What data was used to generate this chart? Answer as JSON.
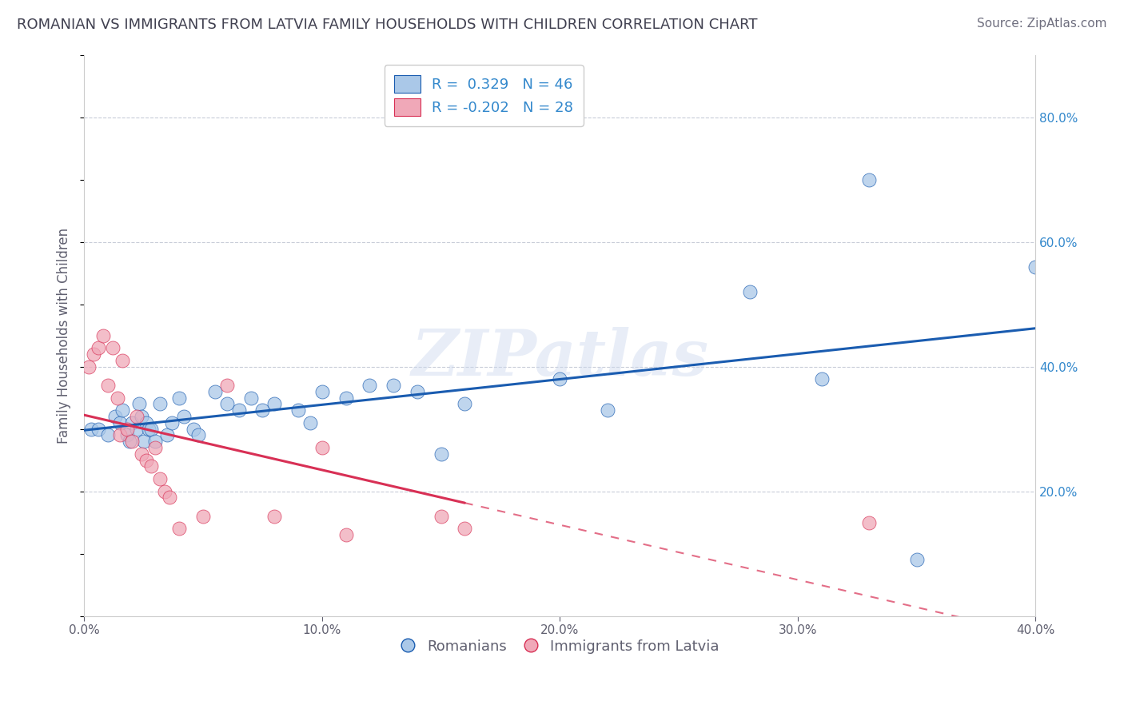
{
  "title": "ROMANIAN VS IMMIGRANTS FROM LATVIA FAMILY HOUSEHOLDS WITH CHILDREN CORRELATION CHART",
  "source": "Source: ZipAtlas.com",
  "ylabel": "Family Households with Children",
  "watermark": "ZIPatlas",
  "legend_entry1": "R =  0.329   N = 46",
  "legend_entry2": "R = -0.202   N = 28",
  "legend_label1": "Romanians",
  "legend_label2": "Immigrants from Latvia",
  "xlim": [
    0.0,
    0.4
  ],
  "ylim": [
    0.0,
    0.9
  ],
  "xticks": [
    0.0,
    0.1,
    0.2,
    0.3,
    0.4
  ],
  "ytick_vals": [
    0.2,
    0.4,
    0.6,
    0.8
  ],
  "ytick_labels_right": [
    "20.0%",
    "40.0%",
    "60.0%",
    "80.0%"
  ],
  "xtick_labels": [
    "0.0%",
    "10.0%",
    "20.0%",
    "30.0%",
    "40.0%"
  ],
  "color_blue": "#aac8e8",
  "color_pink": "#f0a8b8",
  "color_line_blue": "#1a5cb0",
  "color_line_pink": "#d83055",
  "color_grid": "#c8ccd8",
  "title_color": "#404050",
  "source_color": "#707080",
  "axis_label_color": "#606070",
  "tick_color_right": "#3388cc",
  "blue_scatter": [
    [
      0.003,
      0.3
    ],
    [
      0.006,
      0.3
    ],
    [
      0.01,
      0.29
    ],
    [
      0.013,
      0.32
    ],
    [
      0.015,
      0.31
    ],
    [
      0.016,
      0.33
    ],
    [
      0.018,
      0.29
    ],
    [
      0.019,
      0.28
    ],
    [
      0.02,
      0.31
    ],
    [
      0.022,
      0.3
    ],
    [
      0.023,
      0.34
    ],
    [
      0.024,
      0.32
    ],
    [
      0.025,
      0.28
    ],
    [
      0.026,
      0.31
    ],
    [
      0.027,
      0.3
    ],
    [
      0.028,
      0.3
    ],
    [
      0.03,
      0.28
    ],
    [
      0.032,
      0.34
    ],
    [
      0.035,
      0.29
    ],
    [
      0.037,
      0.31
    ],
    [
      0.04,
      0.35
    ],
    [
      0.042,
      0.32
    ],
    [
      0.046,
      0.3
    ],
    [
      0.048,
      0.29
    ],
    [
      0.055,
      0.36
    ],
    [
      0.06,
      0.34
    ],
    [
      0.065,
      0.33
    ],
    [
      0.07,
      0.35
    ],
    [
      0.075,
      0.33
    ],
    [
      0.08,
      0.34
    ],
    [
      0.09,
      0.33
    ],
    [
      0.095,
      0.31
    ],
    [
      0.1,
      0.36
    ],
    [
      0.11,
      0.35
    ],
    [
      0.12,
      0.37
    ],
    [
      0.13,
      0.37
    ],
    [
      0.14,
      0.36
    ],
    [
      0.15,
      0.26
    ],
    [
      0.16,
      0.34
    ],
    [
      0.2,
      0.38
    ],
    [
      0.22,
      0.33
    ],
    [
      0.28,
      0.52
    ],
    [
      0.31,
      0.38
    ],
    [
      0.33,
      0.7
    ],
    [
      0.35,
      0.09
    ],
    [
      0.4,
      0.56
    ]
  ],
  "pink_scatter": [
    [
      0.002,
      0.4
    ],
    [
      0.004,
      0.42
    ],
    [
      0.006,
      0.43
    ],
    [
      0.008,
      0.45
    ],
    [
      0.01,
      0.37
    ],
    [
      0.012,
      0.43
    ],
    [
      0.014,
      0.35
    ],
    [
      0.015,
      0.29
    ],
    [
      0.016,
      0.41
    ],
    [
      0.018,
      0.3
    ],
    [
      0.02,
      0.28
    ],
    [
      0.022,
      0.32
    ],
    [
      0.024,
      0.26
    ],
    [
      0.026,
      0.25
    ],
    [
      0.028,
      0.24
    ],
    [
      0.03,
      0.27
    ],
    [
      0.032,
      0.22
    ],
    [
      0.034,
      0.2
    ],
    [
      0.036,
      0.19
    ],
    [
      0.04,
      0.14
    ],
    [
      0.05,
      0.16
    ],
    [
      0.06,
      0.37
    ],
    [
      0.08,
      0.16
    ],
    [
      0.1,
      0.27
    ],
    [
      0.11,
      0.13
    ],
    [
      0.15,
      0.16
    ],
    [
      0.16,
      0.14
    ],
    [
      0.33,
      0.15
    ]
  ],
  "pink_solid_xlim": [
    0.0,
    0.16
  ],
  "pink_dashed_xlim": [
    0.16,
    0.45
  ],
  "title_fontsize": 13,
  "source_fontsize": 11,
  "ylabel_fontsize": 12,
  "tick_fontsize": 11,
  "legend_fontsize": 13
}
